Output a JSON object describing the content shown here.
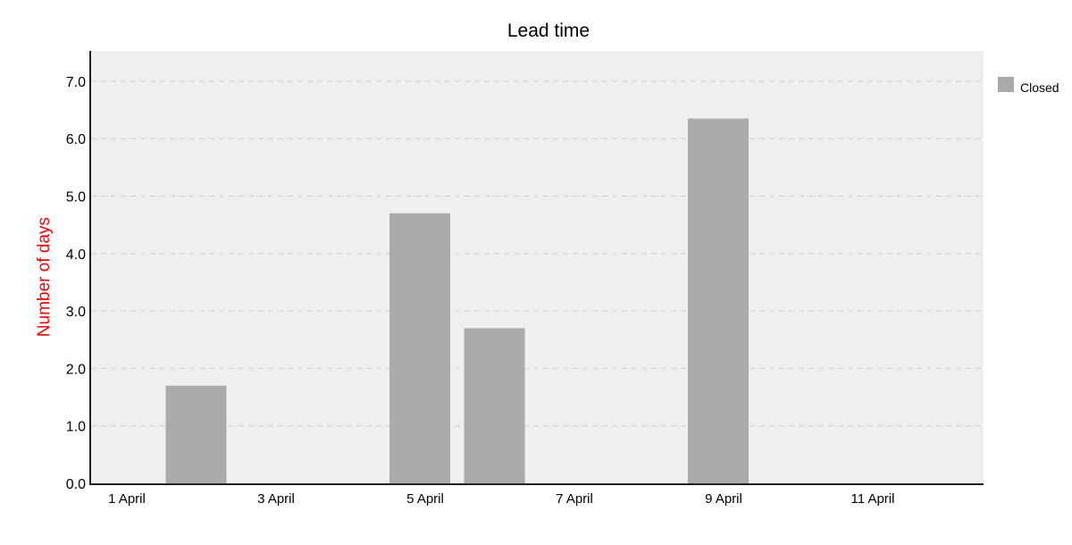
{
  "chart_data": {
    "type": "bar",
    "title": "Lead time",
    "xlabel": "",
    "ylabel": "Number of days",
    "ylabel_color": "#ff0000",
    "x": [
      "2 April",
      "5 April",
      "6 April",
      "9 April"
    ],
    "series": [
      {
        "name": "Closed",
        "color": "#aaaaaa",
        "values": [
          1.7,
          4.7,
          2.7,
          6.35
        ]
      }
    ],
    "x_tick_labels": [
      "1 April",
      "3 April",
      "5 April",
      "7 April",
      "9 April",
      "11 April"
    ],
    "y_tick_labels": [
      "0.0",
      "1.0",
      "2.0",
      "3.0",
      "4.0",
      "5.0",
      "6.0",
      "7.0"
    ],
    "ylim": [
      0,
      7.5
    ],
    "grid": "horizontal dashed",
    "plot_background": "#efefef",
    "legend_position": "top-right"
  }
}
